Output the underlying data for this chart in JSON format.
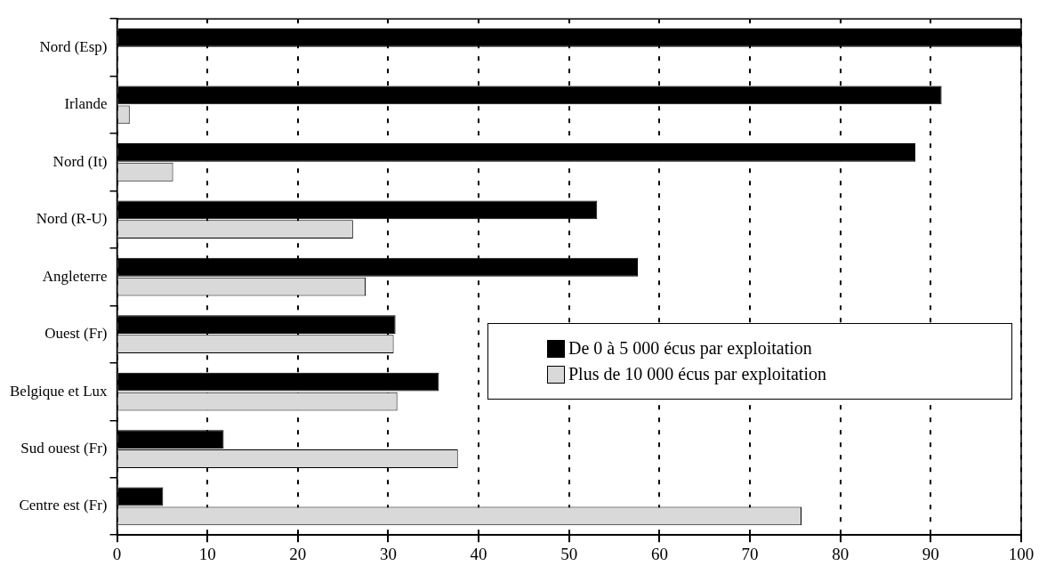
{
  "chart_data": {
    "type": "bar",
    "orientation": "horizontal",
    "categories": [
      "Nord (Esp)",
      "Irlande",
      "Nord (It)",
      "Nord (R-U)",
      "Angleterre",
      "Ouest (Fr)",
      "Belgique et Lux",
      "Sud ouest (Fr)",
      "Centre est (Fr)"
    ],
    "series": [
      {
        "name": "De 0 à 5 000 écus par exploitation",
        "color": "#000000",
        "values": [
          100,
          91.2,
          88.3,
          53.1,
          57.6,
          30.8,
          35.6,
          11.8,
          5.1
        ]
      },
      {
        "name": "Plus de 10 000 écus par exploitation",
        "color": "#d9d9d9",
        "values": [
          null,
          1.4,
          6.2,
          26.1,
          27.5,
          30.6,
          31.0,
          37.7,
          75.7
        ]
      }
    ],
    "xlim": [
      0,
      100
    ],
    "xticks": [
      0,
      10,
      20,
      30,
      40,
      50,
      60,
      70,
      80,
      90,
      100
    ],
    "grid": "x",
    "legend": "right"
  }
}
